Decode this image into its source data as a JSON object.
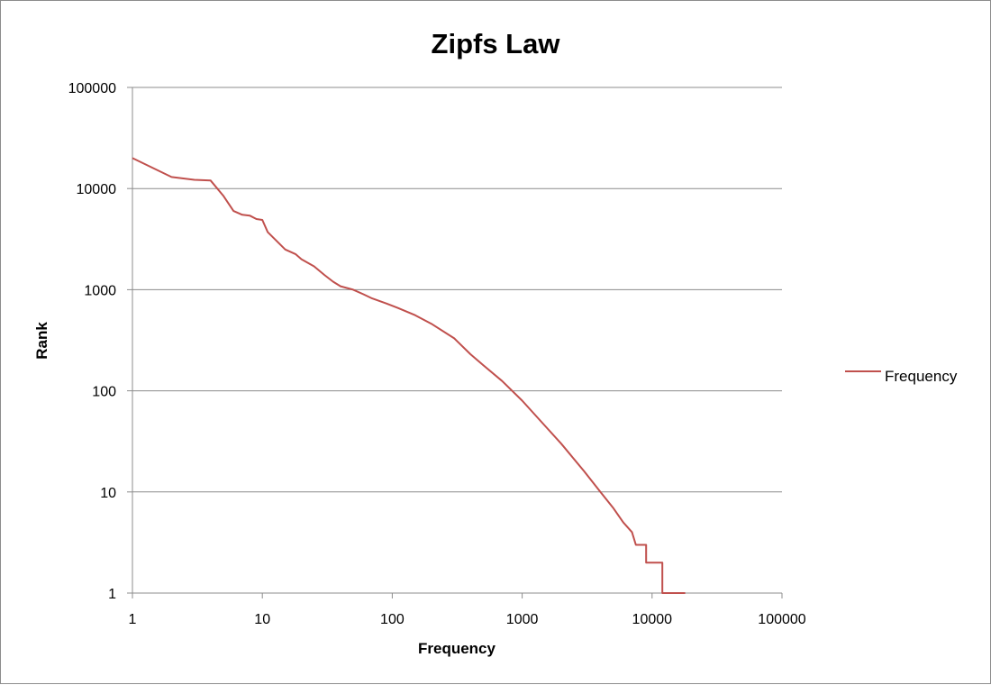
{
  "chart_data": {
    "type": "line",
    "title": "Zipfs Law",
    "xlabel": "Frequency",
    "ylabel": "Rank",
    "xscale": "log",
    "yscale": "log",
    "xlim": [
      1,
      100000
    ],
    "ylim": [
      1,
      100000
    ],
    "x_ticks": [
      "1",
      "10",
      "100",
      "1000",
      "10000",
      "100000"
    ],
    "y_ticks": [
      "1",
      "10",
      "100",
      "1000",
      "10000",
      "100000"
    ],
    "grid": "horizontal major gridlines",
    "legend_position": "right",
    "series": [
      {
        "name": "Frequency",
        "color": "#c0504d",
        "points": [
          [
            1,
            20000
          ],
          [
            2,
            13000
          ],
          [
            3,
            12200
          ],
          [
            4,
            12000
          ],
          [
            5,
            8500
          ],
          [
            6,
            6000
          ],
          [
            7,
            5500
          ],
          [
            8,
            5400
          ],
          [
            9,
            5000
          ],
          [
            10,
            4900
          ],
          [
            11,
            3700
          ],
          [
            15,
            2500
          ],
          [
            18,
            2250
          ],
          [
            20,
            2000
          ],
          [
            25,
            1700
          ],
          [
            30,
            1400
          ],
          [
            35,
            1200
          ],
          [
            40,
            1080
          ],
          [
            50,
            1000
          ],
          [
            60,
            900
          ],
          [
            70,
            820
          ],
          [
            90,
            730
          ],
          [
            110,
            660
          ],
          [
            150,
            560
          ],
          [
            200,
            460
          ],
          [
            300,
            330
          ],
          [
            400,
            230
          ],
          [
            500,
            180
          ],
          [
            700,
            125
          ],
          [
            1000,
            80
          ],
          [
            1500,
            45
          ],
          [
            2000,
            30
          ],
          [
            3000,
            16
          ],
          [
            4000,
            10
          ],
          [
            5000,
            7
          ],
          [
            6000,
            5
          ],
          [
            7000,
            4
          ],
          [
            7500,
            3
          ],
          [
            9000,
            3
          ],
          [
            9000,
            2
          ],
          [
            12000,
            2
          ],
          [
            12000,
            1
          ],
          [
            18000,
            1
          ]
        ]
      }
    ]
  }
}
